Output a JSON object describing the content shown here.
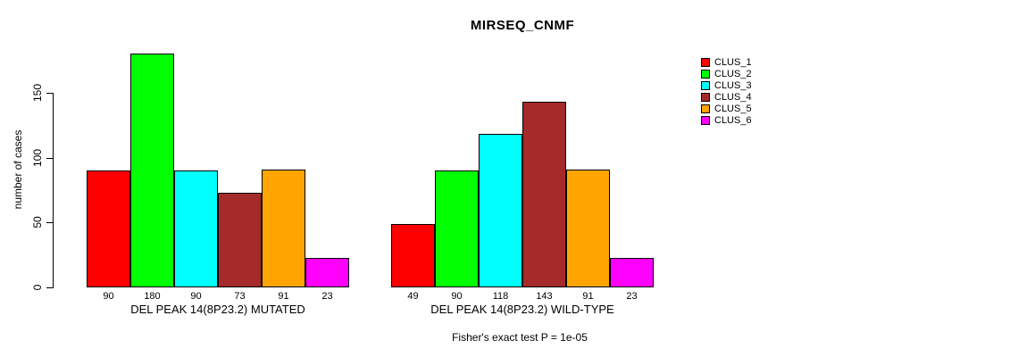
{
  "title": "MIRSEQ_CNMF",
  "footer": "Fisher's exact test P = 1e-05",
  "chart_data": {
    "type": "bar",
    "title": "MIRSEQ_CNMF",
    "xlabel": "",
    "ylabel": "number of cases",
    "ylim": [
      0,
      180
    ],
    "yticks": [
      0,
      50,
      100,
      150
    ],
    "grid": false,
    "legend_position": "right",
    "categories": [
      "CLUS_1",
      "CLUS_2",
      "CLUS_3",
      "CLUS_4",
      "CLUS_5",
      "CLUS_6"
    ],
    "colors": [
      "#FF0000",
      "#00FF00",
      "#00FFFF",
      "#A52A2A",
      "#FFA500",
      "#FF00FF"
    ],
    "groups": [
      {
        "label": "DEL PEAK 14(8P23.2) MUTATED",
        "values": [
          90,
          180,
          90,
          73,
          91,
          23
        ]
      },
      {
        "label": "DEL PEAK 14(8P23.2) WILD-TYPE",
        "values": [
          49,
          90,
          118,
          143,
          91,
          23
        ]
      }
    ],
    "annotation": "Fisher's exact test P = 1e-05"
  }
}
